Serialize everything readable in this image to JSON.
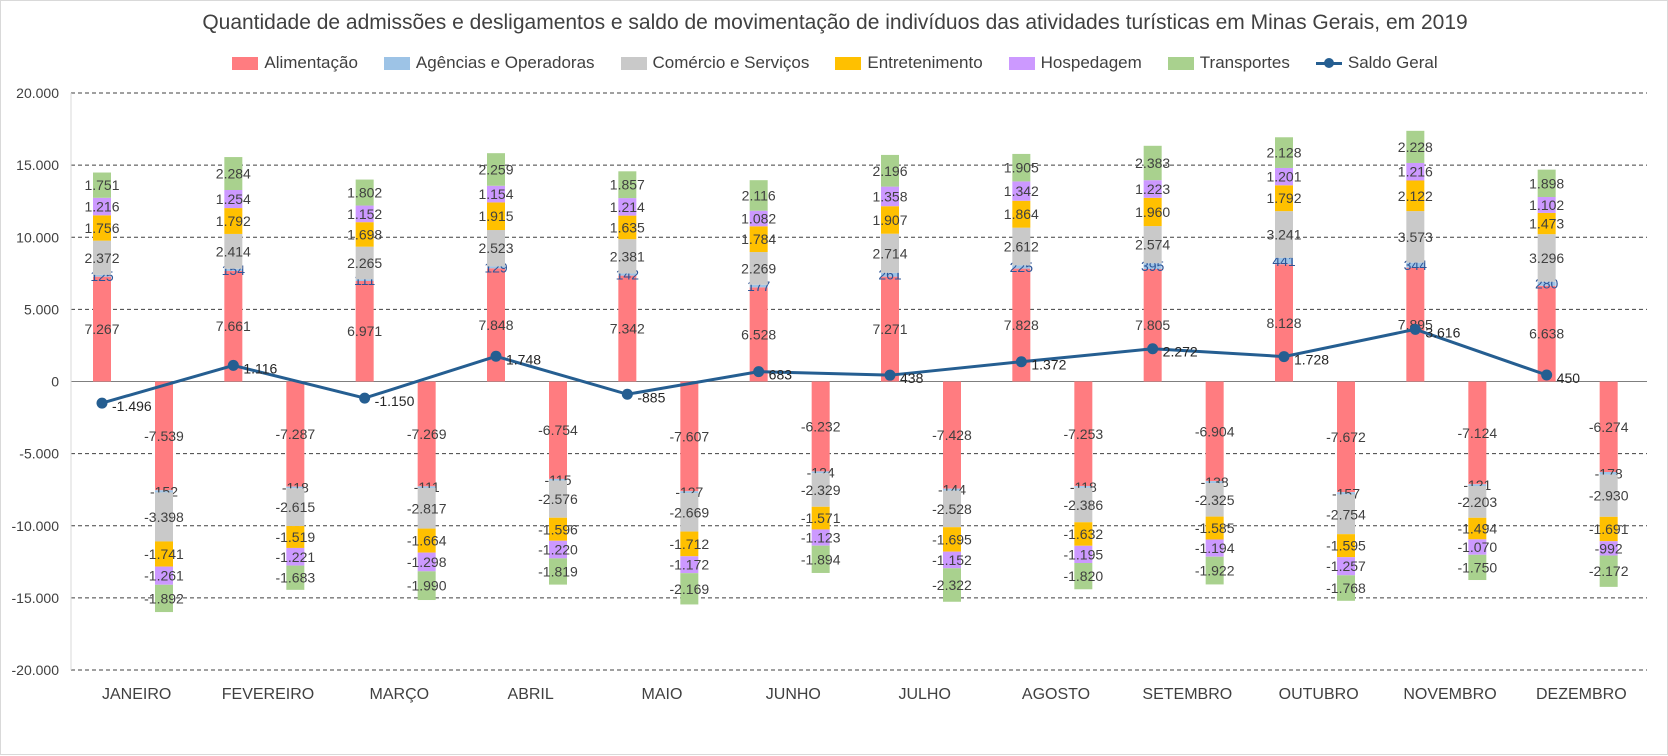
{
  "chart_data": {
    "type": "bar",
    "title": "Quantidade de admissões e desligamentos e saldo de movimentação de indivíduos das atividades turísticas em Minas Gerais, em 2019",
    "categories": [
      "JANEIRO",
      "FEVEREIRO",
      "MARÇO",
      "ABRIL",
      "MAIO",
      "JUNHO",
      "JULHO",
      "AGOSTO",
      "SETEMBRO",
      "OUTUBRO",
      "NOVEMBRO",
      "DEZEMBRO"
    ],
    "ylim": [
      -20000,
      20000
    ],
    "yticks": [
      -20000,
      -15000,
      -10000,
      -5000,
      0,
      5000,
      10000,
      15000,
      20000
    ],
    "ytick_labels": [
      "-20.000",
      "-15.000",
      "-10.000",
      "-5.000",
      "0",
      "5.000",
      "10.000",
      "15.000",
      "20.000"
    ],
    "grid": "horizontal dashed",
    "legend_position": "top",
    "series": [
      {
        "name": "Alimentação",
        "color": "#ff7c80",
        "admissions": [
          7267,
          7661,
          6971,
          7848,
          7342,
          6528,
          7271,
          7828,
          7805,
          8128,
          7895,
          6638
        ],
        "dismissals": [
          -7539,
          -7287,
          -7269,
          -6754,
          -7607,
          -6232,
          -7428,
          -7253,
          -6904,
          -7672,
          -7124,
          -6274
        ],
        "admission_labels": [
          "7.267",
          "7.661",
          "6.971",
          "7.848",
          "7.342",
          "6.528",
          "7.271",
          "7.828",
          "7.805",
          "8.128",
          "7.895",
          "6.638"
        ],
        "dismissal_labels": [
          "-7.539",
          "-7.287",
          "-7.269",
          "-6.754",
          "-7.607",
          "-6.232",
          "-7.428",
          "-7.253",
          "-6.904",
          "-7.672",
          "-7.124",
          "-6.274"
        ]
      },
      {
        "name": "Agências e Operadoras",
        "color": "#9dc3e6",
        "admissions": [
          125,
          154,
          111,
          129,
          142,
          177,
          261,
          225,
          395,
          441,
          344,
          280
        ],
        "dismissals": [
          -152,
          -118,
          -111,
          -115,
          -127,
          -124,
          -144,
          -118,
          -138,
          -157,
          -121,
          -178
        ],
        "admission_labels": [
          "125",
          "154",
          "111",
          "129",
          "142",
          "177",
          "261",
          "225",
          "395",
          "441",
          "344",
          "280"
        ],
        "dismissal_labels": [
          "-152",
          "-118",
          "-111",
          "-115",
          "-127",
          "-124",
          "-144",
          "-118",
          "-138",
          "-157",
          "-121",
          "-178"
        ]
      },
      {
        "name": "Comércio e Serviços",
        "color": "#c9c9c9",
        "admissions": [
          2372,
          2414,
          2265,
          2523,
          2381,
          2269,
          2714,
          2612,
          2574,
          3241,
          3573,
          3296
        ],
        "dismissals": [
          -3398,
          -2615,
          -2817,
          -2576,
          -2669,
          -2329,
          -2528,
          -2386,
          -2325,
          -2754,
          -2203,
          -2930
        ],
        "admission_labels": [
          "2.372",
          "2.414",
          "2.265",
          "2.523",
          "2.381",
          "2.269",
          "2.714",
          "2.612",
          "2.574",
          "3.241",
          "3.573",
          "3.296"
        ],
        "dismissal_labels": [
          "-3.398",
          "-2.615",
          "-2.817",
          "-2.576",
          "-2.669",
          "-2.329",
          "-2.528",
          "-2.386",
          "-2.325",
          "-2.754",
          "-2.203",
          "-2.930"
        ]
      },
      {
        "name": "Entretenimento",
        "color": "#ffc000",
        "admissions": [
          1756,
          1792,
          1698,
          1915,
          1635,
          1784,
          1907,
          1864,
          1960,
          1792,
          2122,
          1473
        ],
        "dismissals": [
          -1741,
          -1519,
          -1664,
          -1596,
          -1712,
          -1571,
          -1695,
          -1632,
          -1585,
          -1595,
          -1494,
          -1691
        ],
        "admission_labels": [
          "1.756",
          "1.792",
          "1.698",
          "1.915",
          "1.635",
          "1.784",
          "1.907",
          "1.864",
          "1.960",
          "1.792",
          "2.122",
          "1.473"
        ],
        "dismissal_labels": [
          "-1.741",
          "-1.519",
          "-1.664",
          "-1.596",
          "-1.712",
          "-1.571",
          "-1.695",
          "-1.632",
          "-1.585",
          "-1.595",
          "-1.494",
          "-1.691"
        ]
      },
      {
        "name": "Hospedagem",
        "color": "#cc99ff",
        "admissions": [
          1216,
          1254,
          1152,
          1154,
          1214,
          1082,
          1358,
          1342,
          1223,
          1201,
          1216,
          1102
        ],
        "dismissals": [
          -1261,
          -1221,
          -1298,
          -1220,
          -1172,
          -1123,
          -1152,
          -1195,
          -1194,
          -1257,
          -1070,
          -992
        ],
        "admission_labels": [
          "1.216",
          "1.254",
          "1.152",
          "1.154",
          "1.214",
          "1.082",
          "1.358",
          "1.342",
          "1.223",
          "1.201",
          "1.216",
          "1.102"
        ],
        "dismissal_labels": [
          "-1.261",
          "-1.221",
          "-1.298",
          "-1.220",
          "-1.172",
          "-1.123",
          "-1.152",
          "-1.195",
          "-1.194",
          "-1.257",
          "-1.070",
          "-992"
        ]
      },
      {
        "name": "Transportes",
        "color": "#a9d18e",
        "admissions": [
          1751,
          2284,
          1802,
          2259,
          1857,
          2116,
          2196,
          1905,
          2383,
          2128,
          2228,
          1898
        ],
        "dismissals": [
          -1892,
          -1683,
          -1990,
          -1819,
          -2169,
          -1894,
          -2322,
          -1820,
          -1922,
          -1768,
          -1750,
          -2172
        ],
        "admission_labels": [
          "1.751",
          "2.284",
          "1.802",
          "2.259",
          "1.857",
          "2.116",
          "2.196",
          "1.905",
          "2.383",
          "2.128",
          "2.228",
          "1.898"
        ],
        "dismissal_labels": [
          "-1.892",
          "-1.683",
          "-1.990",
          "-1.819",
          "-2.169",
          "-1.894",
          "-2.322",
          "-1.820",
          "-1.922",
          "-1.768",
          "-1.750",
          "-2.172"
        ]
      }
    ],
    "line_series": {
      "name": "Saldo Geral",
      "color": "#255e91",
      "values": [
        -1496,
        1116,
        -1150,
        1748,
        -885,
        683,
        438,
        1372,
        2272,
        1728,
        3616,
        450
      ],
      "labels": [
        "-1.496",
        "1.116",
        "-1.150",
        "1.748",
        "-885",
        "683",
        "438",
        "1.372",
        "2.272",
        "1.728",
        "3.616",
        "450"
      ]
    }
  }
}
